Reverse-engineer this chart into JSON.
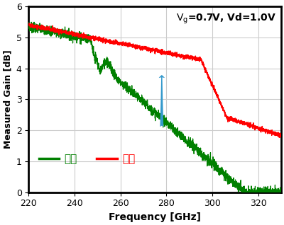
{
  "xlabel": "Frequency [GHz]",
  "ylabel": "Measured Gain [dB]",
  "annotation_line1": "V",
  "annotation_line2": "=0.7V, Vd=1.0V",
  "xlim": [
    220,
    330
  ],
  "ylim": [
    0,
    6
  ],
  "xticks": [
    220,
    240,
    260,
    280,
    300,
    320
  ],
  "yticks": [
    0,
    1,
    2,
    3,
    4,
    5,
    6
  ],
  "legend_green": "従来",
  "legend_red": "今回",
  "green_color": "#008000",
  "red_color": "#ff0000",
  "arrow_color": "#3399cc",
  "background_color": "#ffffff",
  "grid_color": "#cccccc"
}
